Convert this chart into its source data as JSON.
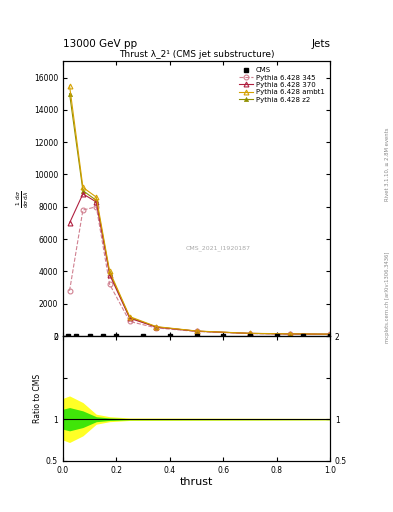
{
  "title_top": "13000 GeV pp",
  "title_right": "Jets",
  "plot_title": "Thrust λ_2¹ (CMS jet substructure)",
  "watermark": "CMS_2021_I1920187",
  "right_label1": "Rivet 3.1.10, ≥ 2.8M events",
  "right_label2": "mcplots.cern.ch [arXiv:1306.3436]",
  "xlabel": "thrust",
  "xlim": [
    0,
    1
  ],
  "ylim_main": [
    0,
    17000
  ],
  "ylim_ratio": [
    0.5,
    2.0
  ],
  "yticks_main": [
    0,
    2000,
    4000,
    6000,
    8000,
    10000,
    12000,
    14000,
    16000
  ],
  "ytick_labels_main": [
    "0",
    "2000",
    "4000",
    "6000",
    "8000",
    "10000",
    "12000",
    "14000",
    "16000"
  ],
  "cms_x": [
    0.02,
    0.05,
    0.1,
    0.15,
    0.2,
    0.3,
    0.4,
    0.5,
    0.6,
    0.7,
    0.8,
    0.9,
    1.0
  ],
  "cms_y": [
    0,
    0,
    0,
    0,
    0,
    0,
    0,
    0,
    0,
    0,
    0,
    0,
    0
  ],
  "p345_x": [
    0.025,
    0.075,
    0.125,
    0.175,
    0.25,
    0.35,
    0.5,
    0.7,
    0.85,
    1.0
  ],
  "p345_y": [
    2800,
    7800,
    8000,
    3200,
    900,
    500,
    280,
    150,
    120,
    100
  ],
  "p370_x": [
    0.025,
    0.075,
    0.125,
    0.175,
    0.25,
    0.35,
    0.5,
    0.7,
    0.85,
    1.0
  ],
  "p370_y": [
    7000,
    8800,
    8300,
    3800,
    1100,
    550,
    300,
    160,
    130,
    110
  ],
  "pambt1_x": [
    0.025,
    0.075,
    0.125,
    0.175,
    0.25,
    0.35,
    0.5,
    0.7,
    0.85,
    1.0
  ],
  "pambt1_y": [
    15500,
    9200,
    8600,
    4000,
    1200,
    580,
    310,
    165,
    135,
    115
  ],
  "pz2_x": [
    0.025,
    0.075,
    0.125,
    0.175,
    0.25,
    0.35,
    0.5,
    0.7,
    0.85,
    1.0
  ],
  "pz2_y": [
    15000,
    9000,
    8400,
    3900,
    1150,
    560,
    300,
    160,
    130,
    110
  ],
  "color_345": "#d08090",
  "color_370": "#b02040",
  "color_ambt1": "#d4a000",
  "color_z2": "#909000",
  "bg_color": "#ffffff",
  "ratio_yellow_x": [
    0.0,
    0.025,
    0.075,
    0.125,
    0.175,
    0.25,
    1.0
  ],
  "ratio_yellow_lo": [
    0.75,
    0.72,
    0.8,
    0.94,
    0.97,
    0.985,
    0.99
  ],
  "ratio_yellow_hi": [
    1.25,
    1.28,
    1.2,
    1.06,
    1.03,
    1.015,
    1.01
  ],
  "ratio_green_x": [
    0.0,
    0.025,
    0.075,
    0.125,
    0.175,
    0.25,
    1.0
  ],
  "ratio_green_lo": [
    0.88,
    0.86,
    0.9,
    0.97,
    0.985,
    0.993,
    0.995
  ],
  "ratio_green_hi": [
    1.12,
    1.14,
    1.1,
    1.03,
    1.015,
    1.007,
    1.005
  ]
}
